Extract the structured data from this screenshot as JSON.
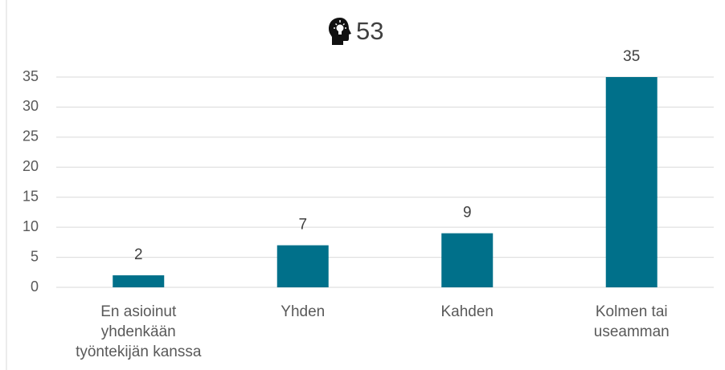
{
  "chart_data": {
    "type": "bar",
    "title": "53",
    "categories": [
      "En asioinut\nyhdenkään\ntyöntekijän kanssa",
      "Yhden",
      "Kahden",
      "Kolmen tai\nuseamman"
    ],
    "values": [
      2,
      7,
      9,
      35
    ],
    "color": "#00708a",
    "ylim": [
      0,
      35
    ],
    "yticks": [
      0,
      5,
      10,
      15,
      20,
      25,
      30,
      35
    ],
    "grid": true
  }
}
